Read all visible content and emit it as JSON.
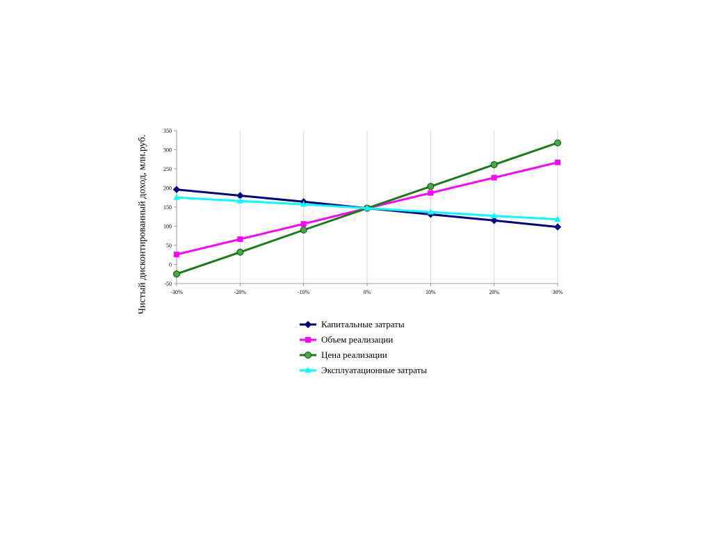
{
  "chart_data": {
    "type": "line",
    "title": "",
    "xlabel": "",
    "ylabel": "Чистый дисконтированный доход, млн.руб.",
    "categories": [
      "-30%",
      "-20%",
      "-10%",
      "0%",
      "10%",
      "20%",
      "30%"
    ],
    "ylim": [
      -50,
      350
    ],
    "yticks": [
      -50,
      0,
      50,
      100,
      150,
      200,
      250,
      300,
      350
    ],
    "grid": "vertical",
    "legend": "bottom",
    "series": [
      {
        "name": "Капитальные затраты",
        "color": "#000080",
        "marker": "diamond",
        "values": [
          196,
          180,
          164,
          147,
          131,
          115,
          98
        ]
      },
      {
        "name": "Объем реализации",
        "color": "#ff00ff",
        "marker": "square",
        "values": [
          26,
          66,
          106,
          147,
          187,
          227,
          267
        ]
      },
      {
        "name": "Цена реализации",
        "color": "#1a7a1a",
        "marker": "circle",
        "values": [
          -25,
          32,
          90,
          147,
          204,
          261,
          318
        ]
      },
      {
        "name": "Эксплуатационные затраты",
        "color": "#00ffff",
        "marker": "triangle",
        "values": [
          175,
          166,
          157,
          147,
          137,
          127,
          118
        ]
      }
    ]
  }
}
